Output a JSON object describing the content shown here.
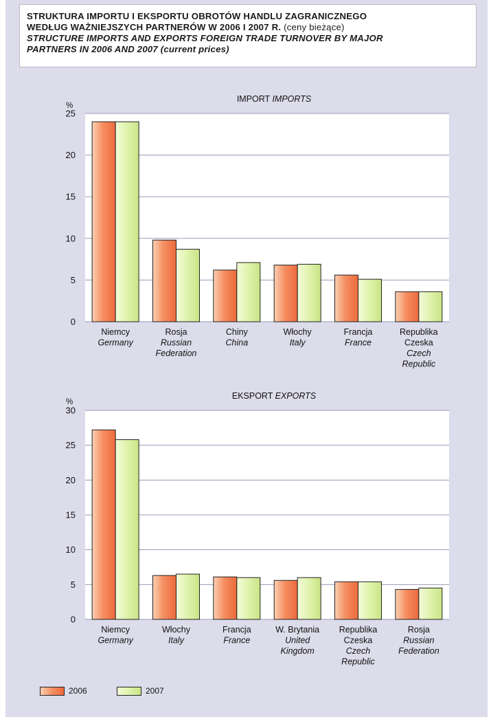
{
  "header": {
    "pl_line1": "STRUKTURA IMPORTU I EKSPORTU OBROTÓW HANDLU ZAGRANICZNEGO",
    "pl_line2_bold": "WEDŁUG WAŻNIEJSZYCH PARTNERÓW W 2006 I 2007 R.",
    "pl_line2_normal": "(ceny bieżące)",
    "en_line1": "STRUCTURE IMPORTS AND EXPORTS FOREIGN TRADE TURNOVER BY MAJOR",
    "en_line2_bold": "PARTNERS IN 2006 AND 2007",
    "en_line2_normal": "(current prices)"
  },
  "colors": {
    "background": "#dcdceb",
    "plot": "#ffffff",
    "grid": "#9a9ab8",
    "series_2006": "#f0764a",
    "series_2006_light": "#fbd0b4",
    "series_2007": "#d5ec96",
    "series_2007_light": "#f3fbd9"
  },
  "legend": {
    "items": [
      {
        "label": "2006",
        "color": "#f0764a"
      },
      {
        "label": "2007",
        "color": "#d5ec96"
      }
    ]
  },
  "chart_data": [
    {
      "type": "bar",
      "title_main": "IMPORT",
      "title_italic": "IMPORTS",
      "ylabel": "%",
      "ylim": [
        0,
        25
      ],
      "yticks": [
        0,
        5,
        10,
        15,
        20,
        25
      ],
      "grid": true,
      "categories": [
        {
          "pl": "Niemcy",
          "en": "Germany"
        },
        {
          "pl": "Rosja",
          "en": "Russian Federation"
        },
        {
          "pl": "Chiny",
          "en": "China"
        },
        {
          "pl": "Włochy",
          "en": "Italy"
        },
        {
          "pl": "Francja",
          "en": "France"
        },
        {
          "pl": "Republika Czeska",
          "en": "Czech Republic"
        }
      ],
      "series": [
        {
          "name": "2006",
          "values": [
            24.0,
            9.8,
            6.2,
            6.8,
            5.6,
            3.6
          ]
        },
        {
          "name": "2007",
          "values": [
            24.0,
            8.7,
            7.1,
            6.9,
            5.1,
            3.6
          ]
        }
      ]
    },
    {
      "type": "bar",
      "title_main": "EKSPORT",
      "title_italic": "EXPORTS",
      "ylabel": "%",
      "ylim": [
        0,
        30
      ],
      "yticks": [
        0,
        5,
        10,
        15,
        20,
        25,
        30
      ],
      "grid": true,
      "categories": [
        {
          "pl": "Niemcy",
          "en": "Germany"
        },
        {
          "pl": "Włochy",
          "en": "Italy"
        },
        {
          "pl": "Francja",
          "en": "France"
        },
        {
          "pl": "W. Brytania",
          "en": "United Kingdom"
        },
        {
          "pl": "Republika Czeska",
          "en": "Czech Republic"
        },
        {
          "pl": "Rosja",
          "en": "Russian Federation"
        }
      ],
      "series": [
        {
          "name": "2006",
          "values": [
            27.2,
            6.3,
            6.1,
            5.6,
            5.4,
            4.3
          ]
        },
        {
          "name": "2007",
          "values": [
            25.8,
            6.5,
            6.0,
            6.0,
            5.4,
            4.5
          ]
        }
      ]
    }
  ]
}
